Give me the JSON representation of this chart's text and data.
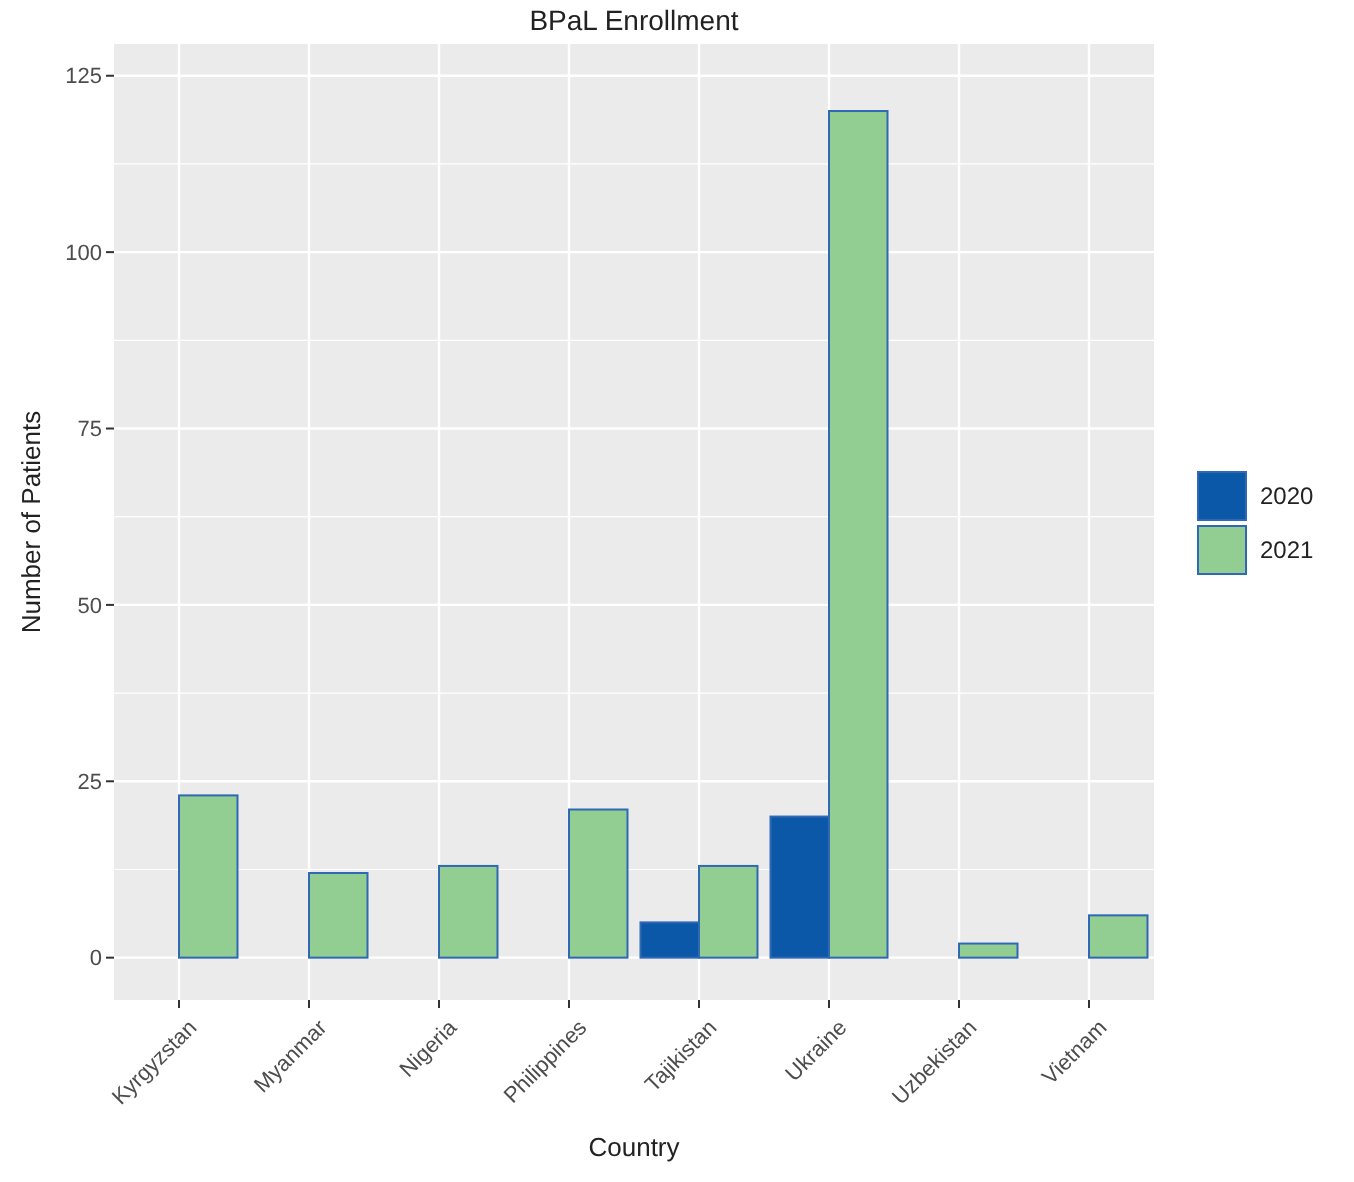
{
  "chart_data": {
    "type": "bar",
    "title": "BPaL Enrollment",
    "xlabel": "Country",
    "ylabel": "Number of Patients",
    "legend_title": null,
    "categories": [
      "Kyrgyzstan",
      "Myanmar",
      "Nigeria",
      "Philippines",
      "Tajikistan",
      "Ukraine",
      "Uzbekistan",
      "Vietnam"
    ],
    "series": [
      {
        "name": "2020",
        "color": "#0c58a8",
        "values": [
          0,
          0,
          0,
          0,
          5,
          20,
          0,
          0
        ]
      },
      {
        "name": "2021",
        "color": "#92cd92",
        "values": [
          23,
          12,
          13,
          21,
          13,
          120,
          2,
          6
        ]
      }
    ],
    "ylim": [
      -6,
      129.5
    ],
    "yticks": [
      0,
      25,
      50,
      75,
      100,
      125
    ],
    "grid": true,
    "legend": "right"
  }
}
